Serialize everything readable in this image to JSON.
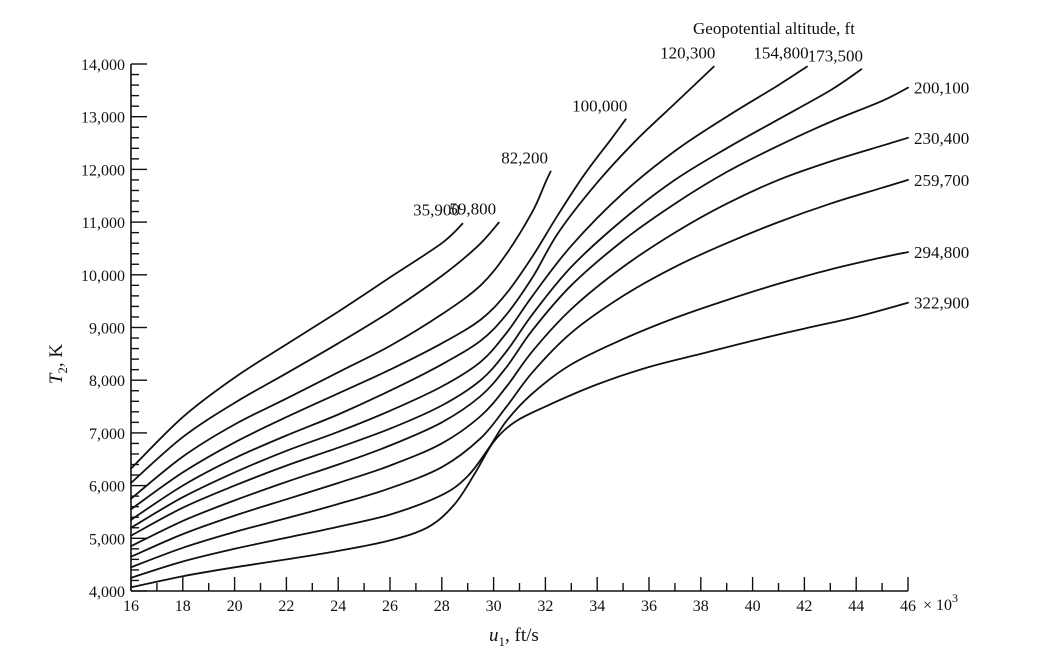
{
  "chart_data": {
    "type": "line",
    "legend_title": "Geopotential altitude, ft",
    "xlabel_main": "u",
    "xlabel_sub": "1",
    "xlabel_tail": ", ft/s",
    "x_multiplier_text": "× 10",
    "x_multiplier_exp": "3",
    "ylabel_main": "T",
    "ylabel_sub": "2",
    "ylabel_tail": ", K",
    "xlim": [
      16,
      46
    ],
    "ylim": [
      4000,
      14000
    ],
    "x_ticks": [
      16,
      18,
      20,
      22,
      24,
      26,
      28,
      30,
      32,
      34,
      36,
      38,
      40,
      42,
      44,
      46
    ],
    "x_tick_labels": [
      "16",
      "18",
      "20",
      "22",
      "24",
      "26",
      "28",
      "30",
      "32",
      "34",
      "36",
      "38",
      "40",
      "42",
      "44",
      "46"
    ],
    "y_ticks": [
      4000,
      5000,
      6000,
      7000,
      8000,
      9000,
      10000,
      11000,
      12000,
      13000,
      14000
    ],
    "y_tick_labels": [
      "4,000",
      "5,000",
      "6,000",
      "7,000",
      "8,000",
      "9,000",
      "10,000",
      "11,000",
      "12,000",
      "13,000",
      "14,000"
    ],
    "grid": false,
    "series": [
      {
        "name": "35,900",
        "x": [
          16,
          18,
          20,
          22,
          24,
          26,
          28,
          28.8
        ],
        "y": [
          6320,
          7300,
          8050,
          8680,
          9300,
          9950,
          10600,
          10970
        ]
      },
      {
        "name": "59,800",
        "x": [
          16,
          18,
          20,
          22,
          24,
          26,
          28,
          29.4,
          30.2
        ],
        "y": [
          6050,
          6920,
          7570,
          8130,
          8700,
          9300,
          9980,
          10550,
          10990
        ]
      },
      {
        "name": "82,200",
        "x": [
          16,
          18,
          20,
          22,
          24,
          26,
          28,
          29.5,
          30.5,
          31.5,
          32,
          32.2
        ],
        "y": [
          5750,
          6550,
          7160,
          7650,
          8150,
          8650,
          9250,
          9800,
          10400,
          11200,
          11750,
          11960
        ]
      },
      {
        "name": "100,000",
        "x": [
          16,
          18,
          20,
          22,
          24,
          26,
          28,
          29.5,
          30.5,
          31.5,
          32.5,
          33.5,
          34.5,
          35.1
        ],
        "y": [
          5550,
          6250,
          6820,
          7300,
          7750,
          8200,
          8700,
          9150,
          9650,
          10350,
          11150,
          11900,
          12550,
          12950
        ]
      },
      {
        "name": "120,300",
        "x": [
          16,
          18,
          20,
          22,
          24,
          26,
          28,
          29.5,
          30.5,
          31.5,
          32.5,
          34,
          35.5,
          37,
          38.5
        ],
        "y": [
          5350,
          6000,
          6520,
          6950,
          7350,
          7800,
          8300,
          8750,
          9250,
          9950,
          10800,
          11750,
          12550,
          13250,
          13950
        ]
      },
      {
        "name": "154,800",
        "x": [
          16,
          18,
          20,
          22,
          24,
          26,
          28,
          29.5,
          30.5,
          31.5,
          33,
          35,
          37,
          39,
          41,
          42.1
        ],
        "y": [
          5200,
          5780,
          6250,
          6660,
          7020,
          7420,
          7880,
          8350,
          8900,
          9600,
          10550,
          11550,
          12350,
          13000,
          13600,
          13950
        ]
      },
      {
        "name": "173,500",
        "x": [
          16,
          18,
          20,
          22,
          24,
          26,
          28,
          29.5,
          30.5,
          31.5,
          33,
          35,
          37,
          39,
          41,
          43,
          44.2
        ],
        "y": [
          5050,
          5580,
          6000,
          6380,
          6720,
          7080,
          7520,
          8000,
          8550,
          9250,
          10150,
          11050,
          11800,
          12400,
          12950,
          13500,
          13900
        ]
      },
      {
        "name": "200,100",
        "x": [
          16,
          18,
          20,
          22,
          24,
          26,
          28,
          29.5,
          30.5,
          31.5,
          33,
          35,
          37,
          39,
          41,
          43,
          45,
          46
        ],
        "y": [
          4850,
          5330,
          5720,
          6070,
          6400,
          6760,
          7200,
          7700,
          8250,
          8950,
          9800,
          10650,
          11350,
          11950,
          12450,
          12900,
          13300,
          13550
        ]
      },
      {
        "name": "230,400",
        "x": [
          16,
          18,
          20,
          22,
          24,
          26,
          28,
          29.5,
          30.5,
          31.5,
          33,
          35,
          37,
          39,
          41,
          43,
          45,
          46
        ],
        "y": [
          4650,
          5080,
          5430,
          5740,
          6050,
          6380,
          6800,
          7320,
          7880,
          8550,
          9350,
          10150,
          10800,
          11350,
          11800,
          12150,
          12450,
          12600
        ]
      },
      {
        "name": "259,700",
        "x": [
          16,
          18,
          20,
          22,
          24,
          26,
          28,
          29.5,
          30.5,
          31.5,
          33,
          35,
          37,
          39,
          41,
          43,
          45,
          46
        ],
        "y": [
          4450,
          4820,
          5120,
          5380,
          5650,
          5950,
          6350,
          6900,
          7500,
          8150,
          8900,
          9600,
          10150,
          10600,
          11000,
          11350,
          11650,
          11800
        ]
      },
      {
        "name": "294,800",
        "x": [
          16,
          18,
          20,
          22,
          24,
          26,
          28,
          29,
          29.8,
          30.5,
          31.5,
          33,
          35,
          37,
          39,
          41,
          43,
          45,
          46
        ],
        "y": [
          4250,
          4560,
          4800,
          5010,
          5220,
          5450,
          5820,
          6180,
          6700,
          7230,
          7750,
          8300,
          8780,
          9180,
          9520,
          9830,
          10100,
          10330,
          10430
        ]
      },
      {
        "name": "322,900",
        "x": [
          16,
          18,
          20,
          22,
          24,
          26,
          27.5,
          28.5,
          29.3,
          30,
          30.8,
          32,
          34,
          36,
          38,
          40,
          42,
          44,
          46
        ],
        "y": [
          4070,
          4280,
          4450,
          4600,
          4760,
          4960,
          5220,
          5650,
          6250,
          6830,
          7200,
          7500,
          7920,
          8250,
          8500,
          8750,
          8980,
          9200,
          9470
        ]
      }
    ]
  }
}
